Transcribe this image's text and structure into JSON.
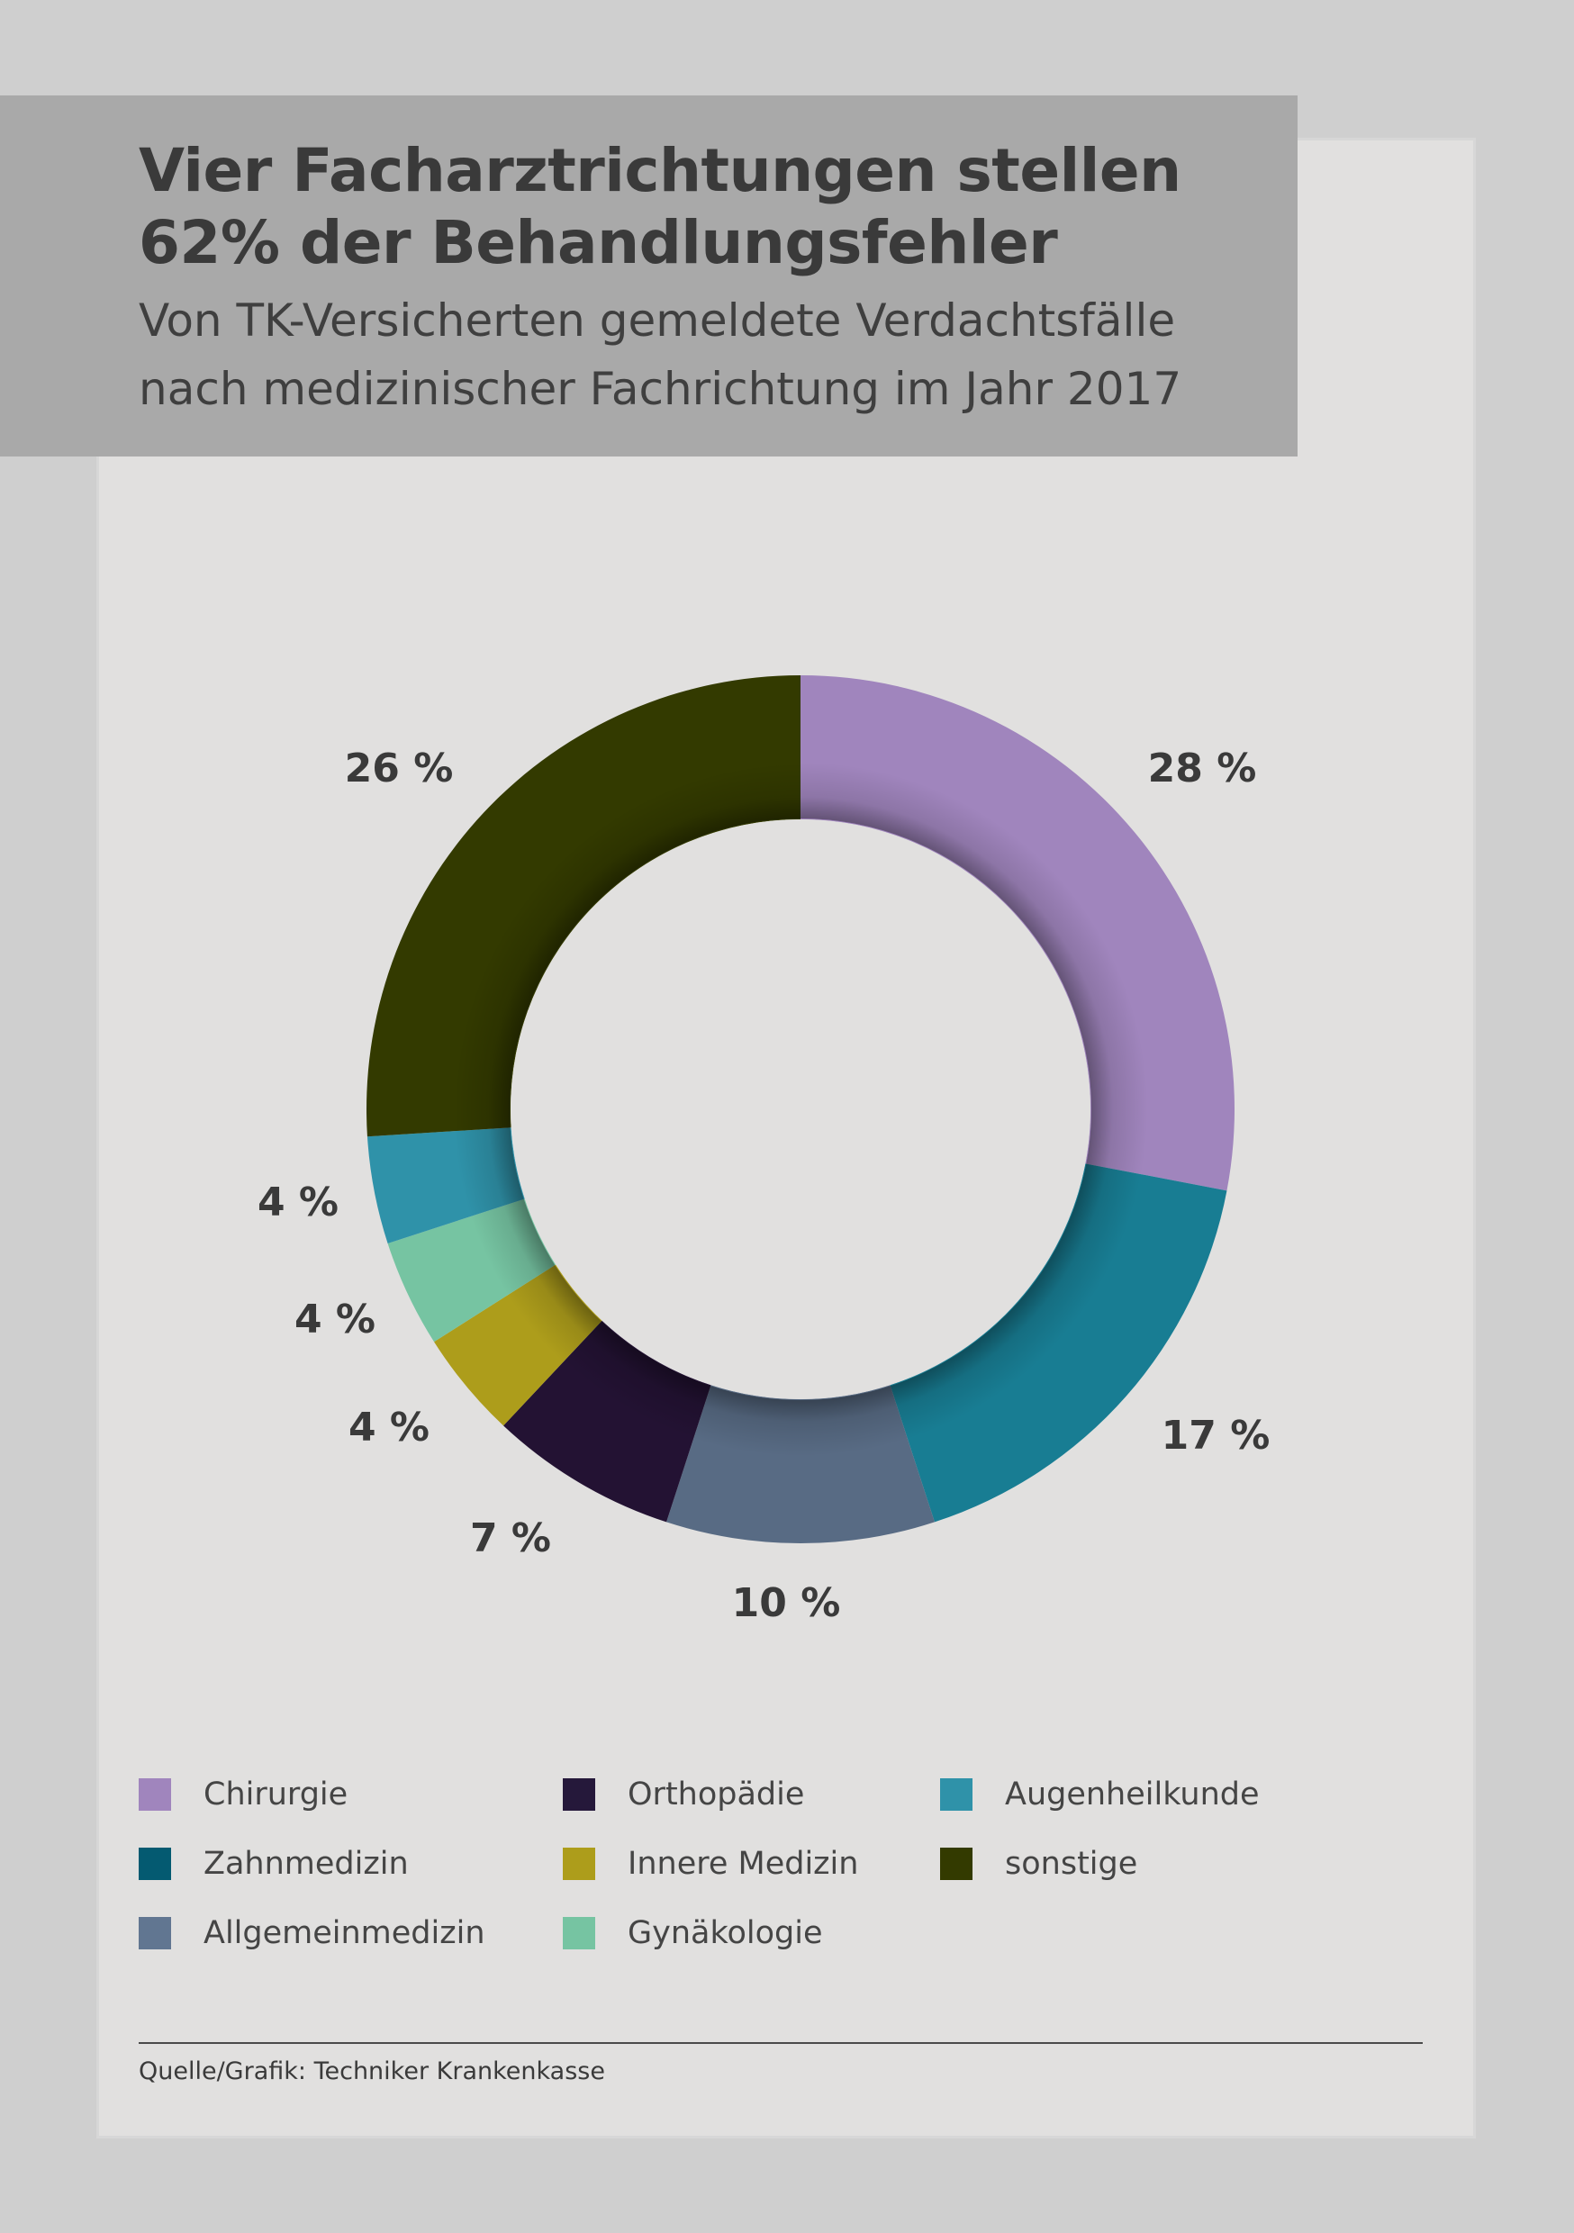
{
  "header": {
    "title_line1": "Vier Facharztrichtungen stellen",
    "title_line2": "62% der Behandlungsfehler",
    "subtitle_line1": "Von TK-Versicherten gemeldete Verdachtsfälle",
    "subtitle_line2": "nach medizinischer Fachrichtung im Jahr 2017"
  },
  "chart_data": {
    "type": "pie",
    "style": "donut",
    "title": "Vier Facharztrichtungen stellen 62% der Behandlungsfehler",
    "subtitle": "Von TK-Versicherten gemeldete Verdachtsfälle nach medizinischer Fachrichtung im Jahr 2017",
    "unit": "%",
    "legend_position": "bottom",
    "categories": [
      "Chirurgie",
      "Zahnmedizin",
      "Allgemeinmedizin",
      "Orthopädie",
      "Innere Medizin",
      "Gynäkologie",
      "Augenheilkunde",
      "sonstige"
    ],
    "values": [
      28,
      17,
      10,
      7,
      4,
      4,
      4,
      26
    ],
    "labels": [
      "28 %",
      "17 %",
      "10 %",
      "7 %",
      "4 %",
      "4 %",
      "4 %",
      "26 %"
    ],
    "colors": [
      "#a085bd",
      "#187d93",
      "#586b84",
      "#231233",
      "#ad9d1b",
      "#76c4a2",
      "#2f92a9",
      "#333a00"
    ]
  },
  "legend": {
    "items": [
      {
        "label": "Chirurgie",
        "color": "#a085bd"
      },
      {
        "label": "Zahnmedizin",
        "color": "#045a71"
      },
      {
        "label": "Allgemeinmedizin",
        "color": "#617691"
      },
      {
        "label": "Orthopädie",
        "color": "#25183a"
      },
      {
        "label": "Innere Medizin",
        "color": "#ad9d1b"
      },
      {
        "label": "Gynäkologie",
        "color": "#76c4a2"
      },
      {
        "label": "Augenheilkunde",
        "color": "#2f92a9"
      },
      {
        "label": "sonstige",
        "color": "#333a00"
      }
    ]
  },
  "footer": {
    "source": "Quelle/Grafik: Techniker Krankenkasse"
  },
  "colors": {
    "background": "#cfcfcf",
    "card": "#e1e0df",
    "header_band": "#a9a9a9",
    "text": "#3a3a3a"
  }
}
